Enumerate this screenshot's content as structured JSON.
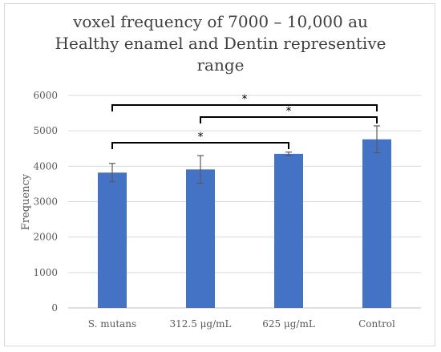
{
  "chart_data": {
    "type": "bar",
    "title_lines": [
      "voxel frequency of 7000 – 10,000 au",
      "Healthy enamel and Dentin representive",
      "range"
    ],
    "xlabel": "",
    "ylabel": "Frequency",
    "categories": [
      "S. mutans",
      "312.5 μg/mL",
      "625 μg/mL",
      "Control"
    ],
    "values": [
      3820,
      3910,
      4350,
      4760
    ],
    "error": [
      260,
      390,
      50,
      380
    ],
    "ylim": [
      0,
      6000
    ],
    "yticks": [
      0,
      1000,
      2000,
      3000,
      4000,
      5000,
      6000
    ],
    "grid": true,
    "legend": "none",
    "bar_color": "#4472c4",
    "significance": [
      {
        "from": "S. mutans",
        "to": "Control",
        "label": "*"
      },
      {
        "from": "312.5 μg/mL",
        "to": "Control",
        "label": "*"
      },
      {
        "from": "S. mutans",
        "to": "625 μg/mL",
        "label": "*"
      }
    ]
  }
}
